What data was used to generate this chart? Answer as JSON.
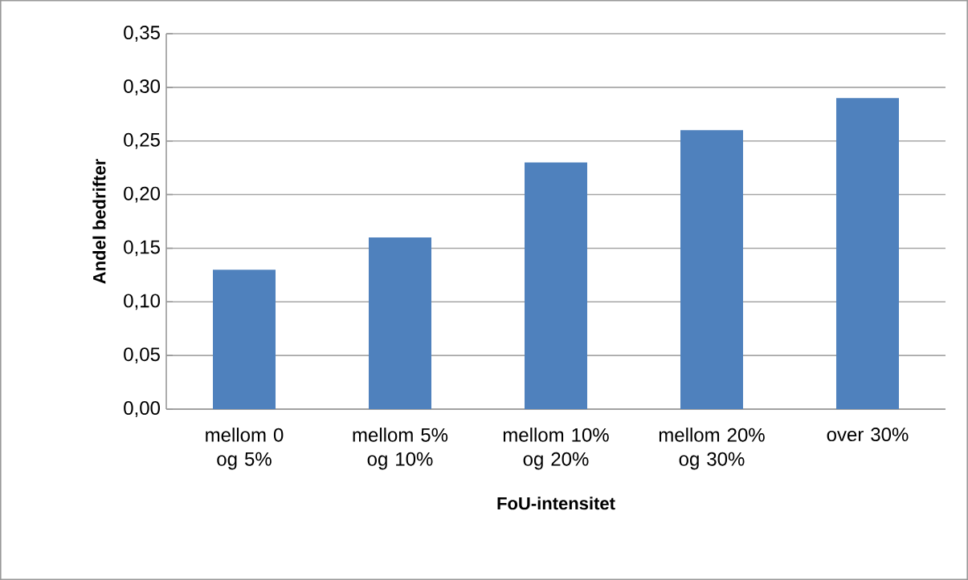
{
  "chart_data": {
    "type": "bar",
    "xlabel": "FoU-intensitet",
    "ylabel": "Andel bedrifter",
    "categories": [
      "mellom 0 og 5%",
      "mellom 5% og 10%",
      "mellom 10% og 20%",
      "mellom 20% og 30%",
      "over 30%"
    ],
    "values": [
      0.13,
      0.16,
      0.23,
      0.26,
      0.29
    ],
    "color": "#4f81bd",
    "ylim": [
      0,
      0.35
    ],
    "yticks": [
      {
        "value": 0,
        "label": "0,00"
      },
      {
        "value": 0.05,
        "label": "0,05"
      },
      {
        "value": 0.1,
        "label": "0,10"
      },
      {
        "value": 0.15,
        "label": "0,15"
      },
      {
        "value": 0.2,
        "label": "0,20"
      },
      {
        "value": 0.25,
        "label": "0,25"
      },
      {
        "value": 0.3,
        "label": "0,30"
      },
      {
        "value": 0.35,
        "label": "0,35"
      }
    ],
    "grid": "y"
  }
}
